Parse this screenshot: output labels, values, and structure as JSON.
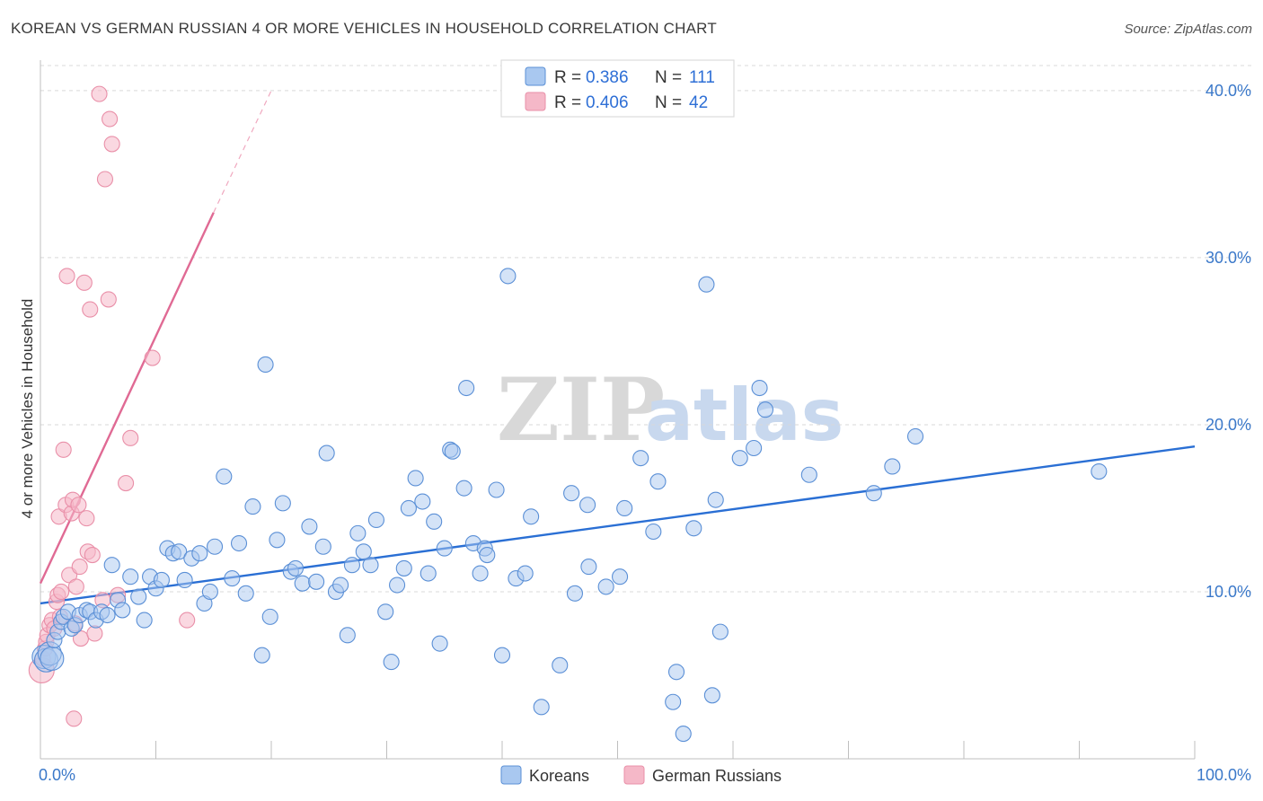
{
  "title": "KOREAN VS GERMAN RUSSIAN 4 OR MORE VEHICLES IN HOUSEHOLD CORRELATION CHART",
  "source": "Source: ZipAtlas.com",
  "watermark": {
    "zip": "ZIP",
    "atlas": "atlas"
  },
  "colors": {
    "korean_fill": "#a9c8f0",
    "korean_stroke": "#5a8fd6",
    "korean_line": "#2a6fd4",
    "german_fill": "#f5b8c8",
    "german_stroke": "#e98fa8",
    "german_line": "#e06a94",
    "grid": "#d9d9d9",
    "axis_text": "#3a78c9"
  },
  "legend": {
    "rows": [
      {
        "series": "Koreans",
        "r_label": "R =",
        "r_value": "0.386",
        "n_label": "N =",
        "n_value": "111"
      },
      {
        "series": "German Russians",
        "r_label": "R =",
        "r_value": "0.406",
        "n_label": "N =",
        "n_value": "42"
      }
    ]
  },
  "bottom_legend": [
    "Koreans",
    "German Russians"
  ],
  "chart_data": {
    "type": "scatter",
    "title": "KOREAN VS GERMAN RUSSIAN 4 OR MORE VEHICLES IN HOUSEHOLD CORRELATION CHART",
    "xlabel": "",
    "ylabel": "4 or more Vehicles in Household",
    "xlim": [
      0,
      100
    ],
    "ylim": [
      0,
      41.5
    ],
    "x_tick_labels": [
      "0.0%",
      "100.0%"
    ],
    "y_ticks": [
      10,
      20,
      30,
      40
    ],
    "y_tick_labels": [
      "10.0%",
      "20.0%",
      "30.0%",
      "40.0%"
    ],
    "series": [
      {
        "name": "Koreans",
        "R": 0.386,
        "N": 111,
        "trend": {
          "x0": 0,
          "y0": 9.3,
          "x1": 100,
          "y1": 18.7
        },
        "points": [
          [
            0.3,
            6.1
          ],
          [
            0.5,
            5.9
          ],
          [
            0.8,
            6.3
          ],
          [
            1.0,
            6.0
          ],
          [
            1.2,
            7.1
          ],
          [
            1.5,
            7.6
          ],
          [
            1.8,
            8.2
          ],
          [
            2.0,
            8.5
          ],
          [
            2.4,
            8.8
          ],
          [
            2.7,
            7.8
          ],
          [
            3.0,
            8.0
          ],
          [
            3.4,
            8.6
          ],
          [
            4.0,
            8.9
          ],
          [
            4.3,
            8.8
          ],
          [
            4.8,
            8.3
          ],
          [
            5.3,
            8.8
          ],
          [
            5.8,
            8.6
          ],
          [
            6.2,
            11.6
          ],
          [
            6.7,
            9.5
          ],
          [
            7.1,
            8.9
          ],
          [
            7.8,
            10.9
          ],
          [
            8.5,
            9.7
          ],
          [
            9.0,
            8.3
          ],
          [
            9.5,
            10.9
          ],
          [
            10.0,
            10.2
          ],
          [
            10.5,
            10.7
          ],
          [
            11.0,
            12.6
          ],
          [
            11.5,
            12.3
          ],
          [
            12.0,
            12.4
          ],
          [
            12.5,
            10.7
          ],
          [
            13.1,
            12.0
          ],
          [
            13.8,
            12.3
          ],
          [
            14.2,
            9.3
          ],
          [
            14.7,
            10.0
          ],
          [
            15.1,
            12.7
          ],
          [
            15.9,
            16.9
          ],
          [
            16.6,
            10.8
          ],
          [
            17.2,
            12.9
          ],
          [
            17.8,
            9.9
          ],
          [
            18.4,
            15.1
          ],
          [
            19.2,
            6.2
          ],
          [
            19.5,
            23.6
          ],
          [
            19.9,
            8.5
          ],
          [
            20.5,
            13.1
          ],
          [
            21.0,
            15.3
          ],
          [
            21.7,
            11.2
          ],
          [
            22.1,
            11.4
          ],
          [
            22.7,
            10.5
          ],
          [
            23.3,
            13.9
          ],
          [
            23.9,
            10.6
          ],
          [
            24.5,
            12.7
          ],
          [
            24.8,
            18.3
          ],
          [
            25.6,
            10.0
          ],
          [
            26.0,
            10.4
          ],
          [
            26.6,
            7.4
          ],
          [
            27.0,
            11.6
          ],
          [
            27.5,
            13.5
          ],
          [
            28.0,
            12.4
          ],
          [
            28.6,
            11.6
          ],
          [
            29.1,
            14.3
          ],
          [
            29.9,
            8.8
          ],
          [
            30.4,
            5.8
          ],
          [
            30.9,
            10.4
          ],
          [
            31.5,
            11.4
          ],
          [
            31.9,
            15.0
          ],
          [
            32.5,
            16.8
          ],
          [
            33.1,
            15.4
          ],
          [
            33.6,
            11.1
          ],
          [
            34.1,
            14.2
          ],
          [
            34.6,
            6.9
          ],
          [
            35.0,
            12.6
          ],
          [
            35.5,
            18.5
          ],
          [
            35.7,
            18.4
          ],
          [
            36.7,
            16.2
          ],
          [
            36.9,
            22.2
          ],
          [
            37.5,
            12.9
          ],
          [
            38.1,
            11.1
          ],
          [
            38.5,
            12.6
          ],
          [
            38.7,
            12.2
          ],
          [
            39.5,
            16.1
          ],
          [
            40.0,
            6.2
          ],
          [
            40.5,
            28.9
          ],
          [
            41.2,
            10.8
          ],
          [
            42.0,
            11.1
          ],
          [
            42.5,
            14.5
          ],
          [
            43.4,
            3.1
          ],
          [
            45.0,
            5.6
          ],
          [
            46.0,
            15.9
          ],
          [
            46.3,
            9.9
          ],
          [
            47.4,
            15.2
          ],
          [
            47.5,
            11.5
          ],
          [
            49.0,
            10.3
          ],
          [
            50.2,
            10.9
          ],
          [
            50.6,
            15.0
          ],
          [
            52.0,
            18.0
          ],
          [
            53.1,
            13.6
          ],
          [
            53.5,
            16.6
          ],
          [
            54.8,
            3.4
          ],
          [
            55.1,
            5.2
          ],
          [
            55.7,
            1.5
          ],
          [
            56.6,
            13.8
          ],
          [
            57.7,
            28.4
          ],
          [
            58.2,
            3.8
          ],
          [
            58.5,
            15.5
          ],
          [
            58.9,
            7.6
          ],
          [
            60.6,
            18.0
          ],
          [
            61.8,
            18.6
          ],
          [
            62.3,
            22.2
          ],
          [
            62.8,
            20.9
          ],
          [
            66.6,
            17.0
          ],
          [
            72.2,
            15.9
          ],
          [
            73.8,
            17.5
          ],
          [
            75.8,
            19.3
          ],
          [
            91.7,
            17.2
          ]
        ]
      },
      {
        "name": "German Russians",
        "R": 0.406,
        "N": 42,
        "trend": {
          "x0": 0,
          "y0": 10.5,
          "x1": 15,
          "y1": 32.7
        },
        "trend_dashed": {
          "x0": 15,
          "y0": 32.7,
          "x1": 20,
          "y1": 40.0
        },
        "points": [
          [
            0.1,
            5.3
          ],
          [
            0.2,
            6.0
          ],
          [
            0.4,
            6.6
          ],
          [
            0.5,
            7.0
          ],
          [
            0.6,
            7.4
          ],
          [
            0.8,
            8.0
          ],
          [
            1.0,
            8.3
          ],
          [
            1.2,
            7.8
          ],
          [
            1.4,
            9.4
          ],
          [
            1.5,
            9.8
          ],
          [
            1.6,
            14.5
          ],
          [
            1.7,
            8.5
          ],
          [
            1.8,
            10.0
          ],
          [
            2.0,
            18.5
          ],
          [
            2.2,
            15.2
          ],
          [
            2.3,
            28.9
          ],
          [
            2.5,
            11.0
          ],
          [
            2.7,
            14.7
          ],
          [
            2.8,
            15.5
          ],
          [
            2.9,
            2.4
          ],
          [
            3.1,
            10.3
          ],
          [
            3.3,
            15.2
          ],
          [
            3.4,
            11.5
          ],
          [
            3.5,
            7.2
          ],
          [
            3.8,
            28.5
          ],
          [
            4.0,
            14.4
          ],
          [
            4.1,
            12.4
          ],
          [
            4.3,
            26.9
          ],
          [
            4.5,
            12.2
          ],
          [
            4.7,
            7.5
          ],
          [
            5.1,
            39.8
          ],
          [
            5.4,
            9.5
          ],
          [
            5.6,
            34.7
          ],
          [
            5.9,
            27.5
          ],
          [
            6.0,
            38.3
          ],
          [
            6.2,
            36.8
          ],
          [
            6.7,
            9.8
          ],
          [
            7.4,
            16.5
          ],
          [
            7.8,
            19.2
          ],
          [
            9.7,
            24.0
          ],
          [
            12.7,
            8.3
          ],
          [
            3.0,
            8.1
          ]
        ]
      }
    ]
  }
}
